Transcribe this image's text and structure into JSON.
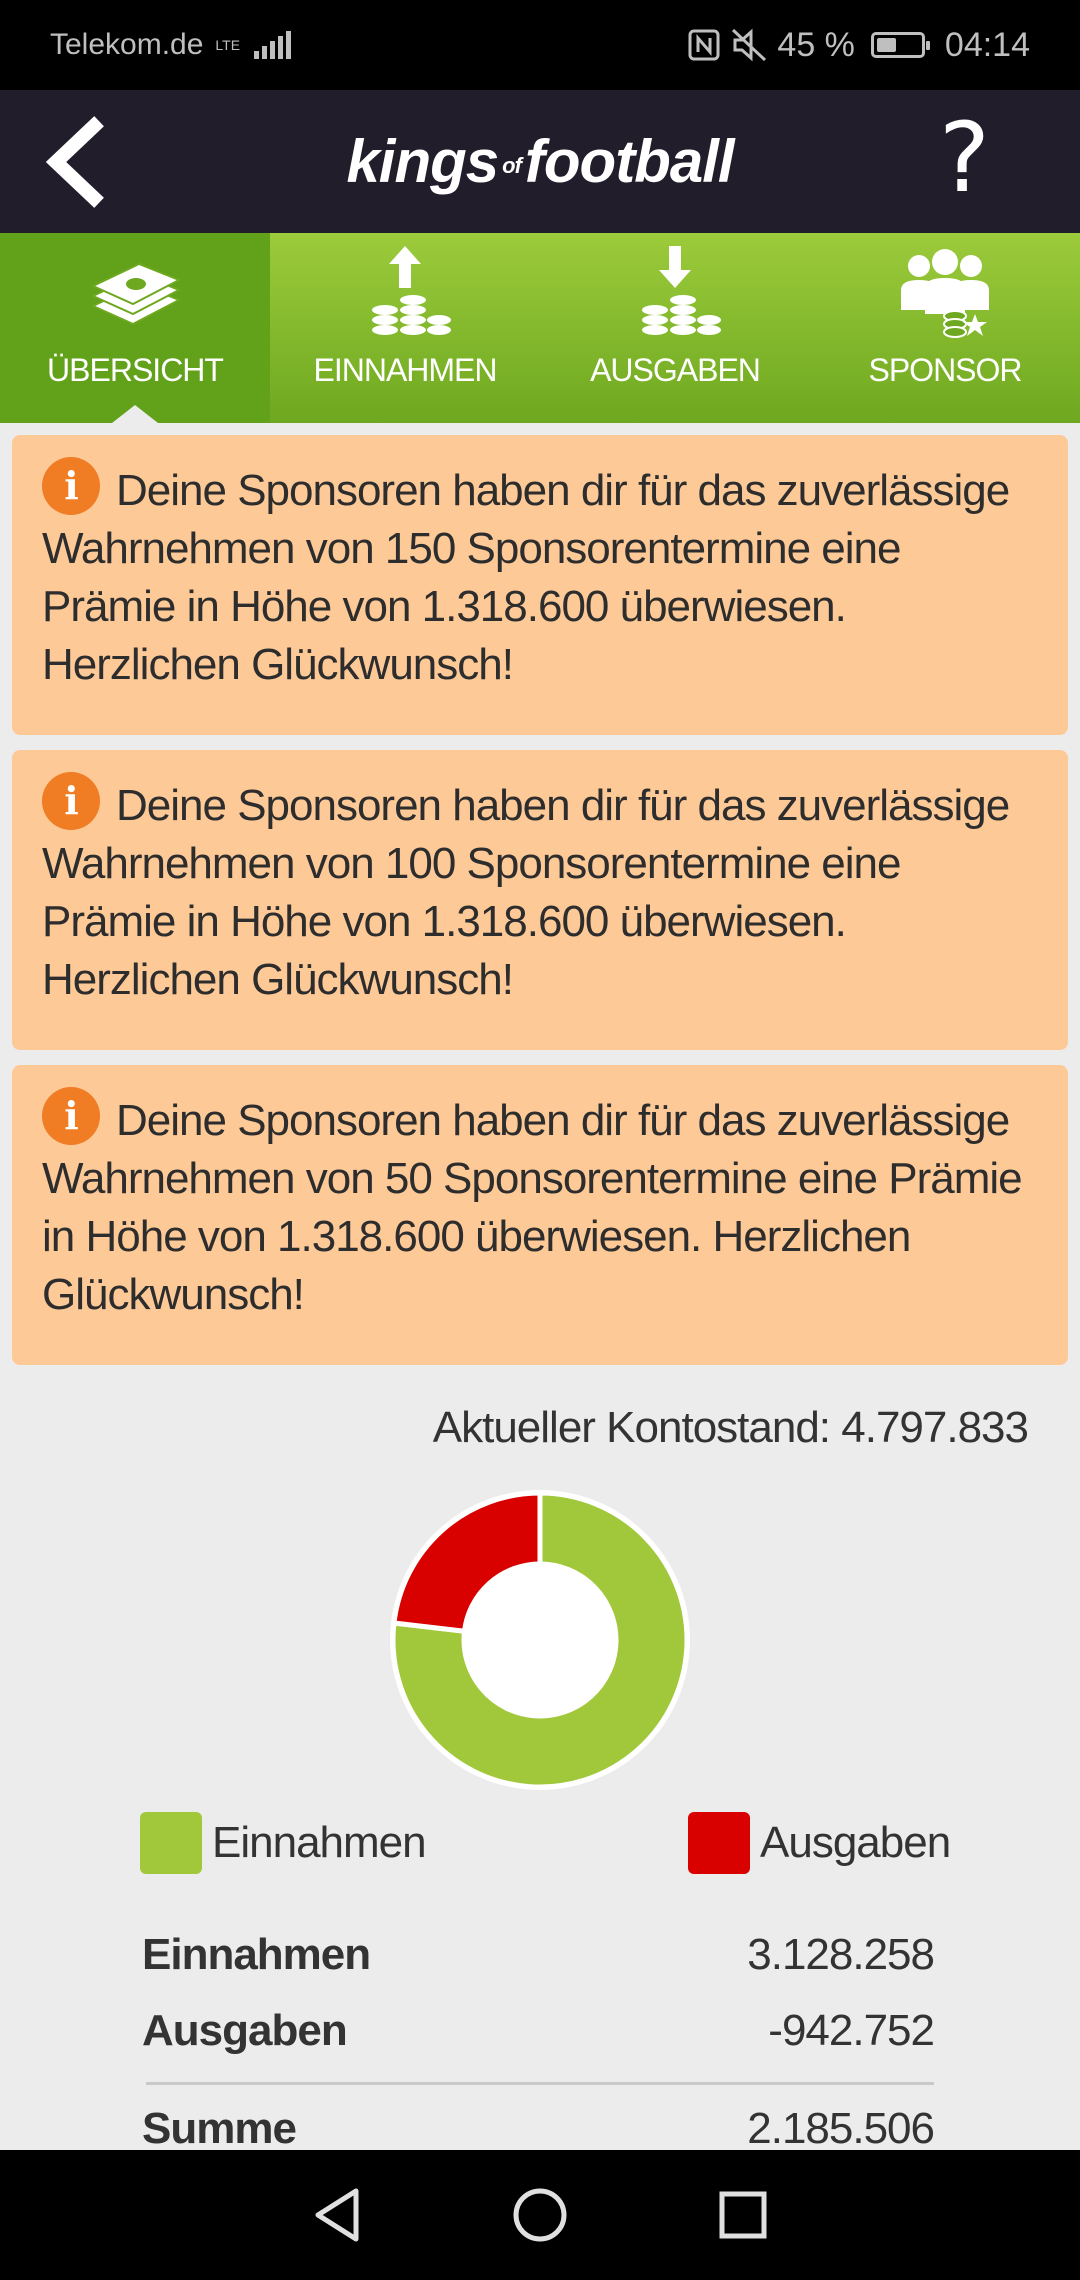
{
  "status": {
    "carrier": "Telekom.de",
    "network": "LTE",
    "battery": "45 %",
    "battery_level": 0.45,
    "time": "04:14"
  },
  "header": {
    "logo_left": "kings",
    "logo_of": "of",
    "logo_right": "football",
    "help": "?"
  },
  "tabs": [
    {
      "label": "ÜBERSICHT",
      "icon": "money-stack-icon",
      "active": true
    },
    {
      "label": "EINNAHMEN",
      "icon": "coins-up-icon",
      "active": false
    },
    {
      "label": "AUSGABEN",
      "icon": "coins-down-icon",
      "active": false
    },
    {
      "label": "SPONSOR",
      "icon": "sponsor-group-icon",
      "active": false
    }
  ],
  "notices": [
    {
      "text": "Deine Sponsoren haben dir für das zuverlässige Wahrnehmen von 150 Sponsorentermine eine Prämie in Höhe von 1.318.600 überwiesen. Herzlichen Glückwunsch!"
    },
    {
      "text": "Deine Sponsoren haben dir für das zuverlässige Wahrnehmen von 100 Sponsorentermine eine Prämie in Höhe von 1.318.600 überwiesen. Herzlichen Glückwunsch!"
    },
    {
      "text": "Deine Sponsoren haben dir für das zuverlässige Wahrnehmen von 50 Sponsorentermine eine Prämie in Höhe von 1.318.600 überwiesen. Herzlichen Glückwunsch!"
    }
  ],
  "balance": "Aktueller Kontostand: 4.797.833",
  "chart_data": {
    "type": "pie",
    "categories": [
      "Einnahmen",
      "Ausgaben"
    ],
    "values": [
      3128258,
      942752
    ],
    "colors": [
      "#a0c83a",
      "#d90000"
    ]
  },
  "legend": {
    "income": "Einnahmen",
    "expense": "Ausgaben",
    "income_color": "#a0c83a",
    "expense_color": "#d90000"
  },
  "summary": {
    "income_label": "Einnahmen",
    "income_value": "3.128.258",
    "expense_label": "Ausgaben",
    "expense_value": "-942.752",
    "total_label": "Summe",
    "total_value": "2.185.506"
  }
}
